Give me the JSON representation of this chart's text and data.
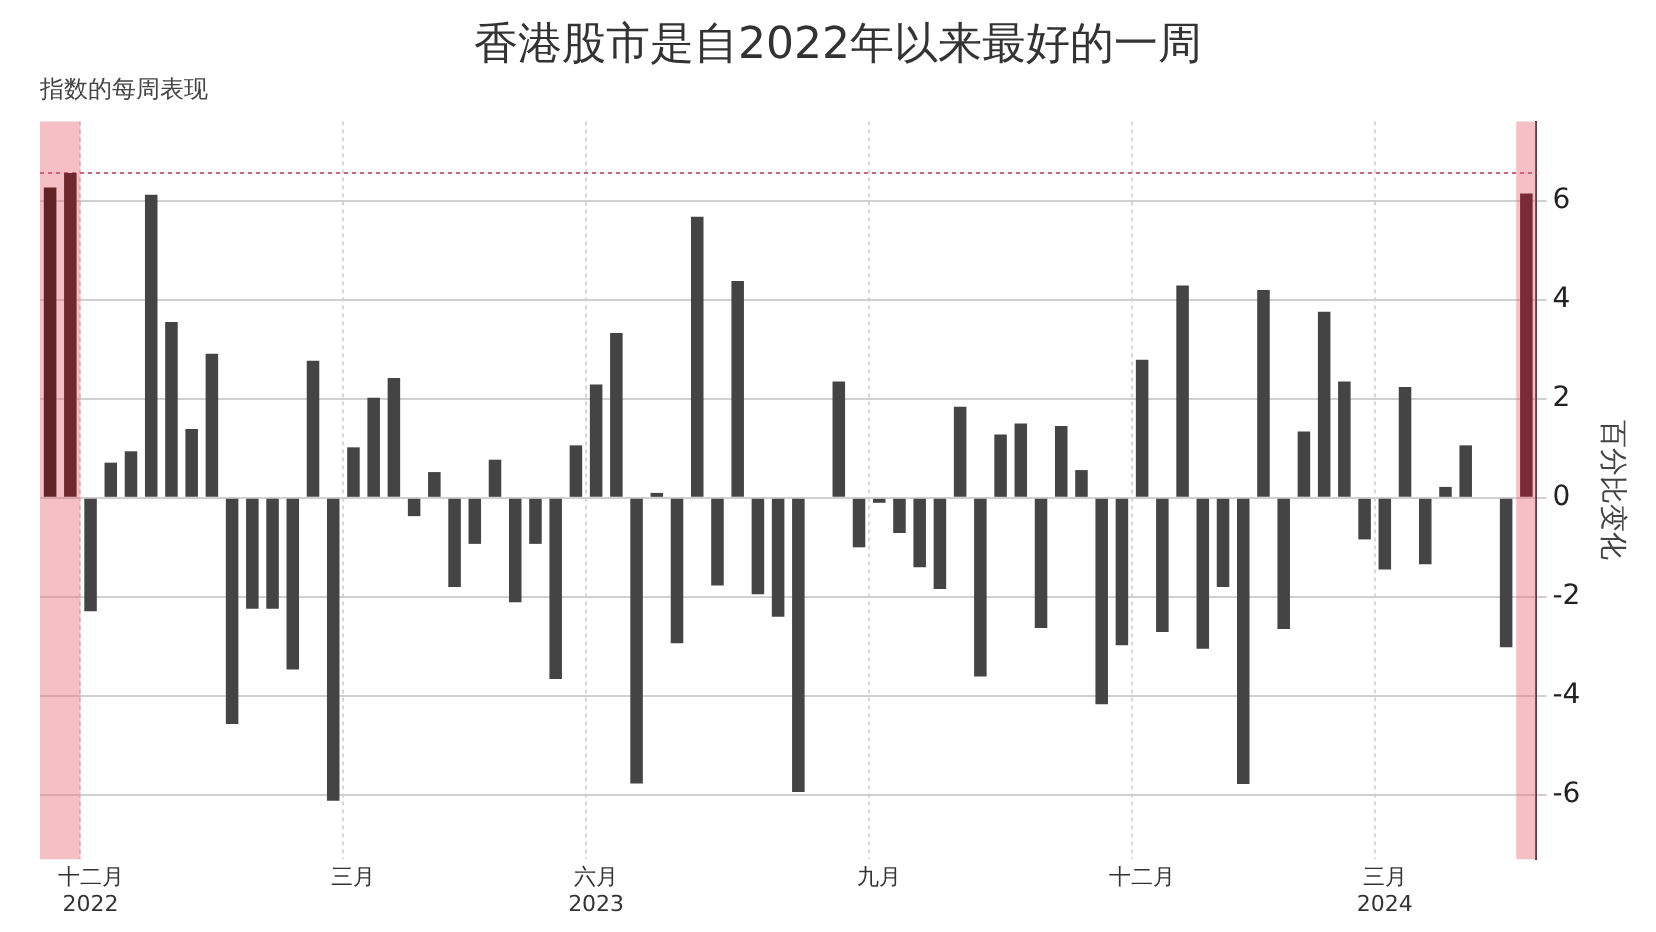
{
  "chart_data": {
    "type": "bar",
    "title": "香港股市是自2022年以来最好的一周",
    "subtitle": "指数的每周表现",
    "ylabel": "百分比变化",
    "categories": [
      null,
      null,
      "十二月 2022",
      null,
      null,
      null,
      null,
      null,
      null,
      null,
      null,
      null,
      null,
      null,
      null,
      "三月",
      null,
      null,
      null,
      null,
      null,
      null,
      null,
      null,
      null,
      null,
      null,
      "六月 2023",
      null,
      null,
      null,
      null,
      null,
      null,
      null,
      null,
      null,
      null,
      null,
      null,
      null,
      "九月",
      null,
      null,
      null,
      null,
      null,
      null,
      null,
      null,
      null,
      null,
      null,
      null,
      "十二月",
      null,
      null,
      null,
      null,
      null,
      null,
      null,
      null,
      null,
      null,
      null,
      "三月 2024",
      null,
      null,
      null,
      null,
      null,
      null,
      null
    ],
    "values": [
      6.27,
      6.56,
      -2.29,
      0.71,
      0.94,
      6.12,
      3.55,
      1.39,
      2.91,
      -4.57,
      -2.24,
      -2.24,
      -3.47,
      2.77,
      -6.12,
      1.02,
      2.02,
      2.42,
      -0.37,
      0.52,
      -1.8,
      -0.93,
      0.77,
      -2.11,
      -0.93,
      -3.66,
      1.06,
      2.29,
      3.33,
      -5.77,
      0.1,
      -2.94,
      5.68,
      -1.77,
      4.38,
      -1.95,
      -2.4,
      -5.94,
      0,
      2.35,
      -1,
      -0.1,
      -0.71,
      -1.4,
      -1.84,
      1.84,
      -3.61,
      1.28,
      1.5,
      -2.63,
      1.45,
      0.56,
      -4.17,
      -2.98,
      2.79,
      -2.71,
      4.29,
      -3.05,
      -1.8,
      -5.78,
      4.2,
      -2.65,
      1.34,
      3.76,
      2.35,
      -0.84,
      -1.45,
      2.24,
      -1.34,
      0.22,
      1.06,
      0,
      -3.02,
      6.15
    ],
    "colors": [
      "#5e2428",
      "#6e2a2e",
      "#444444",
      "#444444",
      "#444444",
      "#444444",
      "#444444",
      "#444444",
      "#444444",
      "#444444",
      "#444444",
      "#444444",
      "#444444",
      "#444444",
      "#444444",
      "#444444",
      "#444444",
      "#444444",
      "#444444",
      "#444444",
      "#444444",
      "#444444",
      "#444444",
      "#444444",
      "#444444",
      "#444444",
      "#444444",
      "#444444",
      "#444444",
      "#444444",
      "#444444",
      "#444444",
      "#444444",
      "#444444",
      "#444444",
      "#444444",
      "#444444",
      "#444444",
      "#444444",
      "#444444",
      "#444444",
      "#444444",
      "#444444",
      "#444444",
      "#444444",
      "#444444",
      "#444444",
      "#444444",
      "#444444",
      "#444444",
      "#444444",
      "#444444",
      "#444444",
      "#444444",
      "#444444",
      "#444444",
      "#444444",
      "#444444",
      "#444444",
      "#444444",
      "#444444",
      "#444444",
      "#444444",
      "#444444",
      "#444444",
      "#444444",
      "#444444",
      "#444444",
      "#444444",
      "#444444",
      "#444444",
      "#444444",
      "#444444",
      "#7a2a35"
    ],
    "ylim": [
      -7.3,
      7.6
    ],
    "yticks": [
      -6,
      -4,
      -2,
      0,
      2,
      4,
      6
    ],
    "grid": true,
    "legend": false,
    "ref_lines": [
      {
        "axis": "y",
        "value": 6.56,
        "color": "#d9607a",
        "line_style": "dotted"
      }
    ]
  }
}
